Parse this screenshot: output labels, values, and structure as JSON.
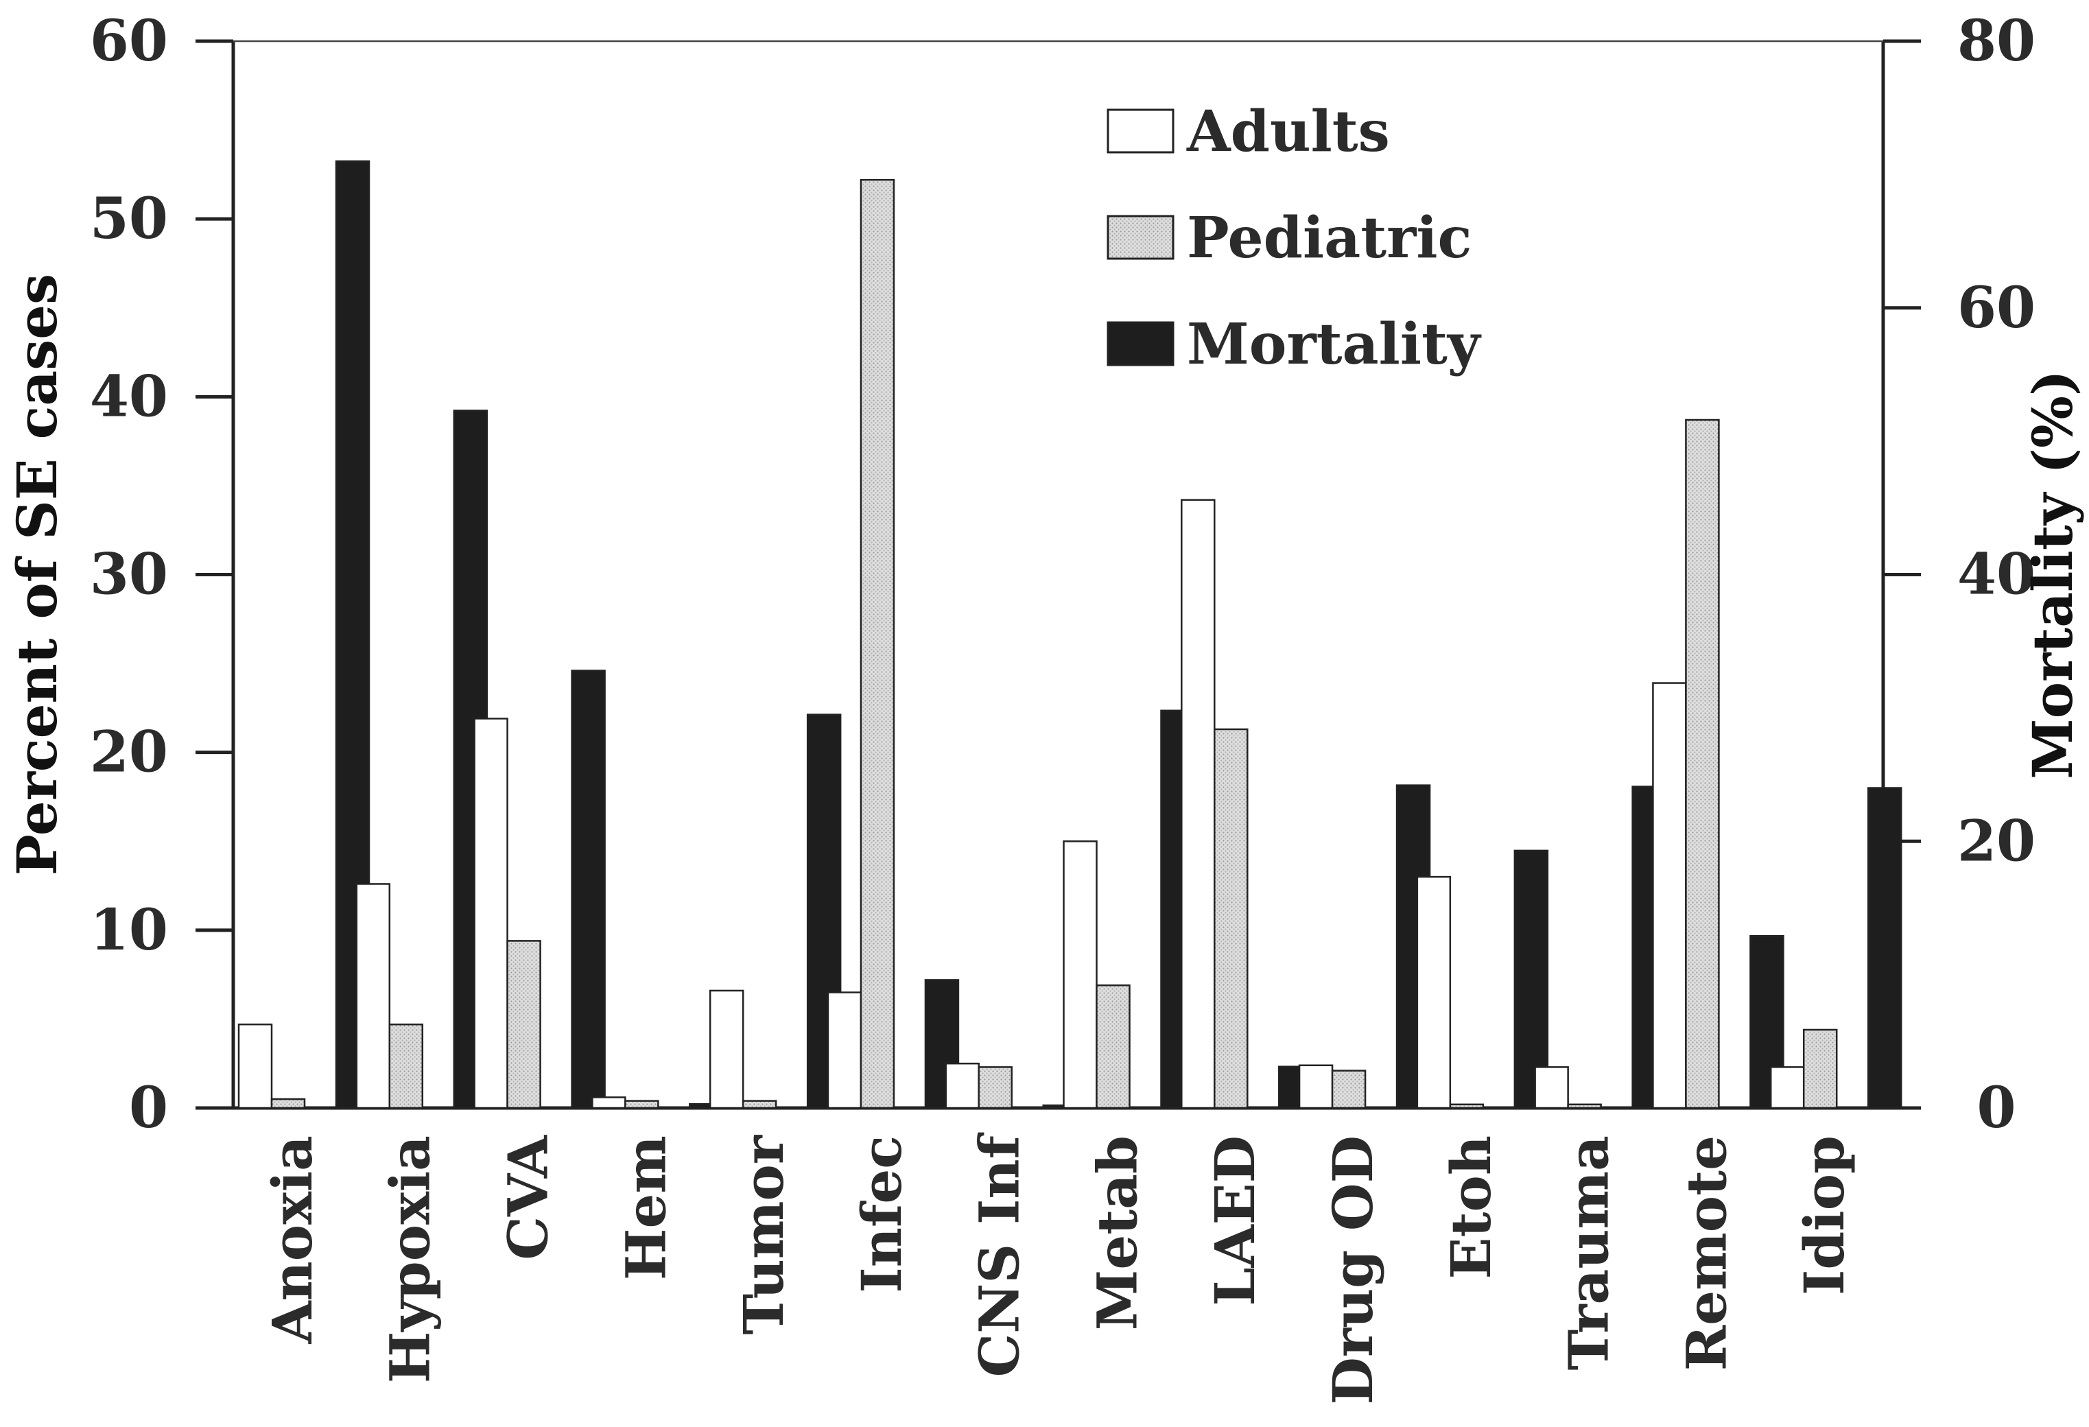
{
  "chart_data": {
    "type": "bar",
    "title": "",
    "xlabel": "",
    "ylabel": "Percent of SE cases",
    "y2label": "Mortality (%)",
    "ylim": [
      0,
      60
    ],
    "y2lim": [
      0,
      80
    ],
    "yticks": [
      0,
      10,
      20,
      30,
      40,
      50,
      60
    ],
    "y2ticks": [
      0,
      20,
      40,
      60,
      80
    ],
    "legend_position": "top-center",
    "categories": [
      "Anoxia",
      "Hypoxia",
      "CVA",
      "Hem",
      "Tumor",
      "Infec",
      "CNS Inf",
      "Metab",
      "LAED",
      "Drug OD",
      "Etoh",
      "Trauma",
      "Remote",
      "Idiop"
    ],
    "series": [
      {
        "name": "Adults",
        "axis": "left",
        "values": [
          4.7,
          12.6,
          21.9,
          0.6,
          6.6,
          6.5,
          2.5,
          15.0,
          34.2,
          2.4,
          13.0,
          2.3,
          23.9,
          2.3
        ],
        "color": "#ffffff",
        "pattern": "none"
      },
      {
        "name": "Pediatric",
        "axis": "left",
        "values": [
          0.5,
          4.7,
          9.4,
          0.4,
          0.4,
          52.2,
          2.3,
          6.9,
          21.3,
          2.1,
          0.2,
          0.2,
          38.7,
          4.4
        ],
        "color": "#d9d9d9",
        "pattern": "stipple"
      },
      {
        "name": "Mortality",
        "axis": "right",
        "values": [
          71.0,
          52.3,
          32.8,
          0.3,
          29.5,
          9.6,
          0.2,
          29.8,
          3.1,
          24.2,
          19.3,
          24.1,
          12.9,
          24.0
        ],
        "color": "#1e1e1e",
        "pattern": "none"
      }
    ]
  }
}
